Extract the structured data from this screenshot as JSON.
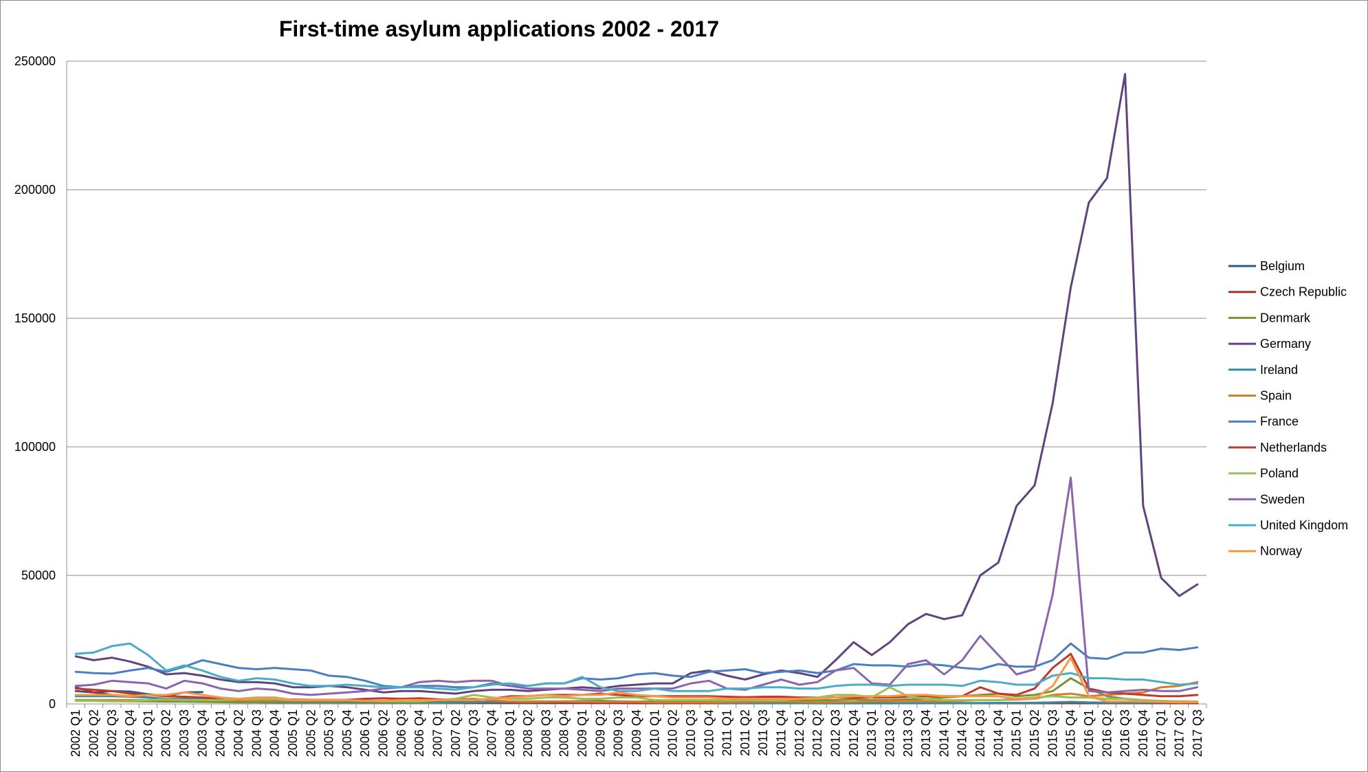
{
  "chart_data": {
    "type": "line",
    "title": "First-time asylum applications 2002 - 2017",
    "xlabel": "",
    "ylabel": "",
    "ylim": [
      0,
      250000
    ],
    "y_ticks": [
      "0",
      "50000",
      "100000",
      "150000",
      "200000",
      "250000"
    ],
    "y_tick_values": [
      0,
      50000,
      100000,
      150000,
      200000,
      250000
    ],
    "grid": true,
    "legend_position": "right",
    "categories": [
      "2002 Q1",
      "2002 Q2",
      "2002 Q3",
      "2002 Q4",
      "2003 Q1",
      "2003 Q2",
      "2003 Q3",
      "2003 Q4",
      "2004 Q1",
      "2004 Q2",
      "2004 Q3",
      "2004 Q4",
      "2005 Q1",
      "2005 Q2",
      "2005 Q3",
      "2005 Q4",
      "2006 Q1",
      "2006 Q2",
      "2006 Q3",
      "2006 Q4",
      "2007 Q1",
      "2007 Q2",
      "2007 Q3",
      "2007 Q4",
      "2008 Q1",
      "2008 Q2",
      "2008 Q3",
      "2008 Q4",
      "2009 Q1",
      "2009 Q2",
      "2009 Q3",
      "2009 Q4",
      "2010 Q1",
      "2010 Q2",
      "2010 Q3",
      "2010 Q4",
      "2011 Q1",
      "2011 Q2",
      "2011 Q3",
      "2011 Q4",
      "2012 Q1",
      "2012 Q2",
      "2012 Q3",
      "2012 Q4",
      "2013 Q1",
      "2013 Q2",
      "2013 Q3",
      "2013 Q4",
      "2014 Q1",
      "2014 Q2",
      "2014 Q3",
      "2014 Q4",
      "2015 Q1",
      "2015 Q2",
      "2015 Q3",
      "2015 Q4",
      "2016 Q1",
      "2016 Q2",
      "2016 Q3",
      "2016 Q4",
      "2017 Q1",
      "2017 Q2",
      "2017 Q3"
    ],
    "series": [
      {
        "name": "Belgium",
        "color": "#2E5A8B",
        "values": [
          5000,
          4500,
          5000,
          4800,
          3800,
          3000,
          4500,
          4600,
          null,
          null,
          null,
          null,
          null,
          null,
          null,
          null,
          null,
          null,
          null,
          null,
          null,
          null,
          null,
          null,
          null,
          null,
          null,
          null,
          null,
          null,
          null,
          null,
          null,
          null,
          null,
          null,
          null,
          null,
          null,
          null,
          null,
          null,
          null,
          null,
          null,
          null,
          null,
          null,
          null,
          null,
          null,
          null,
          null,
          null,
          null,
          null,
          null,
          null,
          null,
          null,
          null,
          null,
          null
        ]
      },
      {
        "name": "Czech Republic",
        "color": "#A8322E",
        "values": [
          6500,
          4500,
          3500,
          3000,
          2500,
          1800,
          1500,
          1200,
          1000,
          900,
          800,
          800,
          800,
          700,
          700,
          700,
          600,
          600,
          500,
          500,
          400,
          400,
          400,
          400,
          400,
          400,
          400,
          400,
          400,
          400,
          400,
          300,
          300,
          300,
          300,
          300,
          300,
          300,
          300,
          300,
          300,
          300,
          300,
          300,
          300,
          300,
          300,
          300,
          300,
          300,
          300,
          300,
          300,
          300,
          300,
          300,
          300,
          300,
          300,
          300,
          300,
          300,
          300
        ]
      },
      {
        "name": "Denmark",
        "color": "#78923A",
        "values": [
          1500,
          1200,
          1100,
          1000,
          1000,
          900,
          900,
          800,
          700,
          600,
          600,
          500,
          500,
          500,
          500,
          500,
          400,
          400,
          400,
          400,
          400,
          500,
          700,
          900,
          800,
          700,
          800,
          1000,
          1100,
          1200,
          1000,
          900,
          1000,
          1000,
          1000,
          1000,
          900,
          900,
          1000,
          1000,
          1200,
          1400,
          1500,
          1800,
          1500,
          1500,
          1800,
          2000,
          2500,
          3000,
          3500,
          4000,
          3000,
          3500,
          5000,
          10000,
          6000,
          3000,
          2000,
          1500,
          1000,
          1000,
          900
        ]
      },
      {
        "name": "Germany",
        "color": "#5E4380",
        "values": [
          18500,
          17000,
          18000,
          16500,
          14500,
          11500,
          12000,
          11000,
          9500,
          8500,
          8500,
          8000,
          6500,
          6500,
          7000,
          6500,
          5500,
          4500,
          5000,
          5000,
          4500,
          4000,
          5000,
          5500,
          5500,
          5000,
          5500,
          6000,
          6500,
          6000,
          7000,
          7500,
          8000,
          8000,
          12000,
          13000,
          11000,
          9500,
          11500,
          13000,
          12000,
          10500,
          17000,
          24000,
          19000,
          24000,
          31000,
          35000,
          33000,
          34500,
          50000,
          55000,
          77000,
          85000,
          117000,
          162000,
          195000,
          204500,
          245000,
          77000,
          49000,
          42000,
          46500
        ]
      },
      {
        "name": "Ireland",
        "color": "#2F8EA3",
        "values": [
          3000,
          3000,
          3000,
          2800,
          2500,
          2000,
          2000,
          1800,
          1500,
          1200,
          1200,
          1100,
          1000,
          1000,
          1000,
          900,
          900,
          800,
          800,
          800,
          800,
          800,
          800,
          800,
          800,
          900,
          900,
          900,
          900,
          900,
          900,
          800,
          700,
          700,
          600,
          500,
          400,
          400,
          300,
          300,
          300,
          250,
          250,
          250,
          250,
          250,
          300,
          300,
          300,
          300,
          350,
          400,
          400,
          450,
          600,
          800,
          600,
          500,
          500,
          500,
          600,
          700,
          800
        ]
      },
      {
        "name": "Spain",
        "color": "#D77D28",
        "values": [
          1500,
          1500,
          1500,
          1500,
          1500,
          1500,
          1500,
          1500,
          1400,
          1300,
          1300,
          1300,
          1300,
          1300,
          1300,
          1300,
          1200,
          1200,
          1200,
          1200,
          1500,
          1800,
          2000,
          1500,
          1000,
          1000,
          1000,
          1000,
          800,
          800,
          800,
          800,
          600,
          600,
          600,
          600,
          700,
          800,
          900,
          900,
          800,
          600,
          700,
          800,
          1000,
          1100,
          1200,
          1100,
          1000,
          1200,
          1500,
          1500,
          1700,
          2000,
          3500,
          4000,
          3000,
          3500,
          4000,
          4500,
          6500,
          7000,
          8500
        ]
      },
      {
        "name": "France",
        "color": "#4A7EC0",
        "values": [
          12500,
          12000,
          11800,
          13000,
          14000,
          12500,
          14500,
          17000,
          15500,
          14000,
          13500,
          14000,
          13500,
          13000,
          11000,
          10500,
          9000,
          7000,
          6500,
          7000,
          7000,
          6500,
          6500,
          8000,
          7000,
          7000,
          8000,
          8000,
          10000,
          9500,
          10000,
          11500,
          12000,
          11000,
          10500,
          12500,
          13000,
          13500,
          12000,
          12500,
          13000,
          12000,
          13000,
          15500,
          15000,
          15000,
          14500,
          15500,
          15000,
          14000,
          13500,
          15500,
          14500,
          14500,
          17000,
          23500,
          18000,
          17500,
          20000,
          20000,
          21500,
          21000,
          22000
        ]
      },
      {
        "name": "Netherlands",
        "color": "#C0392B",
        "values": [
          6000,
          5500,
          5000,
          4000,
          3500,
          3000,
          2800,
          2500,
          2000,
          1800,
          1800,
          1700,
          1700,
          1600,
          1600,
          1600,
          2000,
          2200,
          2000,
          2200,
          1800,
          1600,
          1500,
          2000,
          3000,
          3000,
          3500,
          3500,
          3500,
          4000,
          3500,
          3000,
          3000,
          3000,
          3000,
          3000,
          2800,
          2600,
          2800,
          2800,
          2500,
          2500,
          2500,
          2500,
          2500,
          2500,
          2800,
          3000,
          3000,
          3000,
          6500,
          4000,
          3500,
          6000,
          14000,
          19500,
          6000,
          4500,
          4000,
          3500,
          3000,
          3000,
          3500
        ]
      },
      {
        "name": "Poland",
        "color": "#9BBF59",
        "values": [
          1200,
          1200,
          1000,
          1000,
          1500,
          1800,
          1500,
          1500,
          1500,
          1800,
          1800,
          1800,
          1500,
          1500,
          1500,
          1500,
          1200,
          1000,
          1000,
          1000,
          1500,
          2000,
          3500,
          2500,
          2000,
          2000,
          2500,
          2500,
          2000,
          2000,
          2500,
          2500,
          1500,
          1500,
          1500,
          1500,
          1500,
          1500,
          1500,
          1500,
          2000,
          2500,
          3500,
          3500,
          2500,
          6500,
          3000,
          2000,
          1500,
          1500,
          1500,
          1500,
          2000,
          2500,
          3000,
          2500,
          2500,
          2000,
          2000,
          1500,
          1200,
          1000,
          900
        ]
      },
      {
        "name": "Sweden",
        "color": "#8A65AD",
        "values": [
          7000,
          7500,
          9000,
          8500,
          8000,
          6000,
          9000,
          8000,
          6000,
          5000,
          6000,
          5500,
          4000,
          3500,
          4000,
          4500,
          5000,
          6000,
          6500,
          8500,
          9000,
          8500,
          9000,
          9000,
          7000,
          6000,
          6000,
          6000,
          5500,
          5000,
          6000,
          6000,
          6000,
          6000,
          8000,
          9000,
          6000,
          5500,
          7500,
          9500,
          7500,
          8500,
          13000,
          14000,
          8000,
          7500,
          15500,
          17000,
          11500,
          17000,
          26500,
          19000,
          11500,
          13500,
          42500,
          88000,
          5000,
          4500,
          5000,
          5500,
          5000,
          5000,
          6500
        ]
      },
      {
        "name": "United Kingdom",
        "color": "#4BACC6",
        "values": [
          19500,
          20000,
          22500,
          23500,
          19000,
          13000,
          15000,
          13000,
          10500,
          9000,
          10000,
          9500,
          8000,
          7000,
          7000,
          7500,
          7000,
          6500,
          6500,
          6500,
          6000,
          5500,
          6500,
          7500,
          8000,
          7000,
          8000,
          8000,
          10500,
          6500,
          5000,
          5000,
          6000,
          5000,
          5000,
          5000,
          6000,
          6000,
          6500,
          6500,
          6000,
          6000,
          7000,
          7500,
          7500,
          7000,
          7500,
          7500,
          7500,
          7000,
          9000,
          8500,
          7500,
          7500,
          11000,
          12000,
          10000,
          10000,
          9500,
          9500,
          8500,
          7500,
          8000
        ]
      },
      {
        "name": "Norway",
        "color": "#F79646",
        "values": [
          3500,
          3500,
          3500,
          3000,
          3500,
          3500,
          4500,
          3500,
          2500,
          2000,
          2500,
          2500,
          1500,
          1500,
          1500,
          1500,
          1200,
          1200,
          1500,
          1500,
          1500,
          1500,
          1500,
          2000,
          2500,
          3000,
          3500,
          3000,
          3500,
          3500,
          4500,
          3500,
          3000,
          2500,
          2500,
          2500,
          2000,
          2000,
          2000,
          2000,
          2000,
          2000,
          2500,
          3000,
          3000,
          3000,
          3500,
          3500,
          3000,
          3000,
          3000,
          3000,
          2000,
          2000,
          7000,
          18000,
          3000,
          1000,
          1000,
          1000,
          800,
          600,
          700
        ]
      }
    ]
  }
}
